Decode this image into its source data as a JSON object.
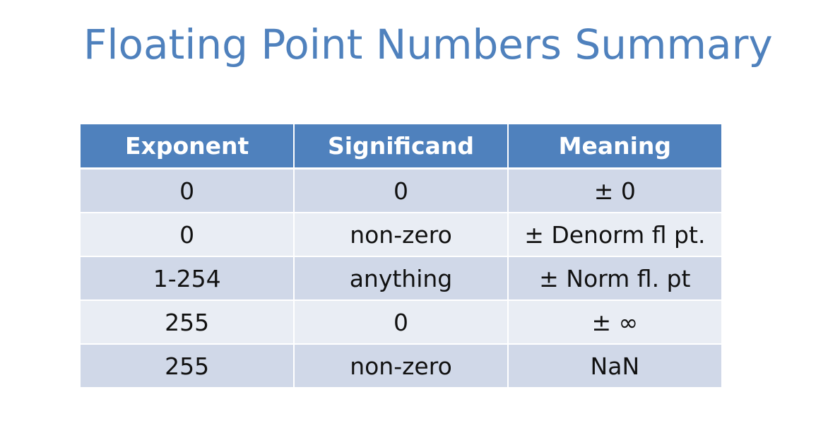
{
  "slide": {
    "title": "Floating Point Numbers Summary"
  },
  "table": {
    "headers": [
      "Exponent",
      "Significand",
      "Meaning"
    ],
    "rows": [
      [
        "0",
        "0",
        "± 0"
      ],
      [
        "0",
        "non-zero",
        "± Denorm fl pt."
      ],
      [
        "1-254",
        "anything",
        "± Norm fl. pt"
      ],
      [
        "255",
        "0",
        "± ∞"
      ],
      [
        "255",
        "non-zero",
        "NaN"
      ]
    ]
  },
  "colors": {
    "title": "#4F81BD",
    "header_bg": "#4F81BD",
    "row_dark": "#D0D8E8",
    "row_light": "#E9EDF4"
  }
}
